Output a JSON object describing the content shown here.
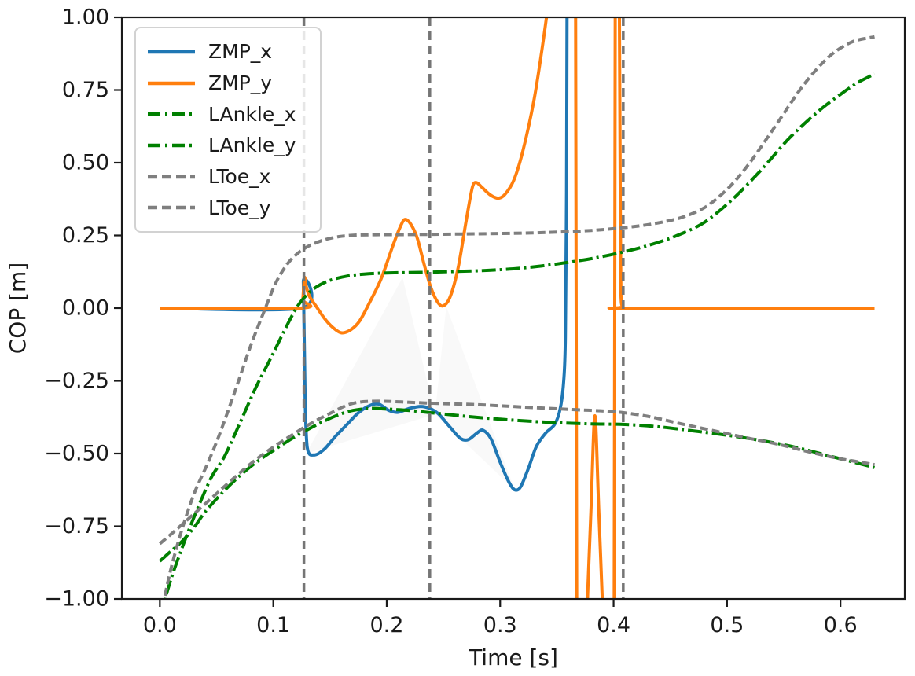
{
  "chart_data": {
    "type": "line",
    "title": "",
    "xlabel": "Time [s]",
    "ylabel": "COP [m]",
    "xlim": [
      -0.0335,
      0.6567
    ],
    "ylim": [
      -1.0,
      1.0
    ],
    "grid": false,
    "legend_position": "upper-left",
    "x_ticks": {
      "values": [
        0.0,
        0.1,
        0.2,
        0.3,
        0.4,
        0.5,
        0.6
      ],
      "labels": [
        "0.0",
        "0.1",
        "0.2",
        "0.3",
        "0.4",
        "0.5",
        "0.6"
      ]
    },
    "y_ticks": {
      "values": [
        1.0,
        0.75,
        0.5,
        0.25,
        0.0,
        -0.25,
        -0.5,
        -0.75,
        -1.0
      ],
      "labels": [
        "1.00",
        "0.75",
        "0.50",
        "0.25",
        "0.00",
        "−0.25",
        "−0.50",
        "−0.75",
        "−1.00"
      ]
    },
    "event_lines": {
      "color": "#757575",
      "style": "dashed",
      "times": [
        0.127,
        0.238,
        0.4085
      ]
    },
    "shaded_regions": [
      {
        "fill": "#c8c8c8",
        "opacity": 0.13,
        "points": [
          [
            0.129,
            -0.5
          ],
          [
            0.214,
            0.105
          ],
          [
            0.2425,
            -0.365
          ]
        ]
      },
      {
        "fill": "#c8c8c8",
        "opacity": 0.1,
        "points": [
          [
            0.2425,
            -0.365
          ],
          [
            0.2525,
            0.005
          ],
          [
            0.313,
            -0.625
          ]
        ]
      }
    ],
    "series": [
      {
        "name": "ZMP_x",
        "color": "#1f77b4",
        "style": "solid",
        "segments": [
          [
            [
              0.0,
              0.0
            ],
            [
              0.125,
              0.0
            ],
            [
              0.1265,
              0.09
            ],
            [
              0.128,
              -0.3
            ],
            [
              0.13,
              -0.48
            ],
            [
              0.136,
              -0.505
            ],
            [
              0.145,
              -0.485
            ],
            [
              0.155,
              -0.44
            ],
            [
              0.165,
              -0.4
            ],
            [
              0.175,
              -0.36
            ],
            [
              0.185,
              -0.335
            ],
            [
              0.193,
              -0.33
            ],
            [
              0.202,
              -0.352
            ],
            [
              0.21,
              -0.358
            ],
            [
              0.22,
              -0.345
            ],
            [
              0.23,
              -0.338
            ],
            [
              0.238,
              -0.345
            ],
            [
              0.246,
              -0.365
            ],
            [
              0.256,
              -0.41
            ],
            [
              0.265,
              -0.448
            ],
            [
              0.272,
              -0.452
            ],
            [
              0.28,
              -0.428
            ],
            [
              0.285,
              -0.42
            ],
            [
              0.292,
              -0.45
            ],
            [
              0.3,
              -0.53
            ],
            [
              0.308,
              -0.6
            ],
            [
              0.313,
              -0.625
            ],
            [
              0.318,
              -0.615
            ],
            [
              0.325,
              -0.55
            ],
            [
              0.332,
              -0.475
            ],
            [
              0.34,
              -0.43
            ],
            [
              0.348,
              -0.4
            ],
            [
              0.353,
              -0.345
            ],
            [
              0.356,
              -0.25
            ],
            [
              0.3575,
              -0.1
            ],
            [
              0.3585,
              0.4
            ],
            [
              0.359,
              1.1
            ],
            [
              0.3595,
              1.15
            ]
          ],
          [
            [
              0.412,
              0.0
            ],
            [
              0.63,
              0.0
            ]
          ]
        ]
      },
      {
        "name": "ZMP_y",
        "color": "#ff7f0e",
        "style": "solid",
        "segments": [
          [
            [
              0.0,
              0.0
            ],
            [
              0.124,
              0.0
            ],
            [
              0.126,
              0.03
            ],
            [
              0.1275,
              0.105
            ],
            [
              0.129,
              0.075
            ],
            [
              0.132,
              0.04
            ],
            [
              0.138,
              0.005
            ],
            [
              0.145,
              -0.035
            ],
            [
              0.152,
              -0.065
            ],
            [
              0.16,
              -0.085
            ],
            [
              0.168,
              -0.075
            ],
            [
              0.176,
              -0.045
            ],
            [
              0.185,
              0.02
            ],
            [
              0.195,
              0.1
            ],
            [
              0.205,
              0.21
            ],
            [
              0.212,
              0.28
            ],
            [
              0.216,
              0.305
            ],
            [
              0.221,
              0.29
            ],
            [
              0.227,
              0.24
            ],
            [
              0.233,
              0.15
            ],
            [
              0.239,
              0.07
            ],
            [
              0.245,
              0.02
            ],
            [
              0.25,
              0.008
            ],
            [
              0.256,
              0.04
            ],
            [
              0.263,
              0.14
            ],
            [
              0.27,
              0.3
            ],
            [
              0.2755,
              0.415
            ],
            [
              0.279,
              0.432
            ],
            [
              0.284,
              0.415
            ],
            [
              0.291,
              0.39
            ],
            [
              0.298,
              0.378
            ],
            [
              0.304,
              0.39
            ],
            [
              0.312,
              0.44
            ],
            [
              0.32,
              0.54
            ],
            [
              0.33,
              0.72
            ],
            [
              0.338,
              0.92
            ],
            [
              0.344,
              1.1
            ],
            [
              0.3445,
              1.15
            ],
            [
              0.366,
              1.15
            ],
            [
              0.3665,
              1.1
            ],
            [
              0.3675,
              -1.1
            ],
            [
              0.368,
              -1.15
            ],
            [
              0.3755,
              -1.15
            ],
            [
              0.376,
              -1.1
            ],
            [
              0.38,
              -0.7
            ],
            [
              0.3835,
              -0.37
            ],
            [
              0.387,
              -0.7
            ],
            [
              0.391,
              -1.1
            ],
            [
              0.3915,
              -1.15
            ],
            [
              0.4,
              -1.15
            ],
            [
              0.4005,
              -1.1
            ],
            [
              0.4015,
              1.1
            ],
            [
              0.402,
              1.15
            ],
            [
              0.4045,
              1.15
            ],
            [
              0.405,
              1.1
            ],
            [
              0.406,
              0.3
            ],
            [
              0.4065,
              0.05
            ],
            [
              0.408,
              0.005
            ],
            [
              0.412,
              0.0
            ],
            [
              0.63,
              0.0
            ]
          ]
        ]
      },
      {
        "name": "LAnkle_x",
        "color": "#008000",
        "style": "dashdot",
        "segments": [
          [
            [
              0.0,
              -0.87
            ],
            [
              0.01,
              -0.835
            ],
            [
              0.02,
              -0.8
            ],
            [
              0.03,
              -0.755
            ],
            [
              0.04,
              -0.7
            ],
            [
              0.055,
              -0.635
            ],
            [
              0.07,
              -0.578
            ],
            [
              0.085,
              -0.53
            ],
            [
              0.1,
              -0.49
            ],
            [
              0.115,
              -0.452
            ],
            [
              0.13,
              -0.418
            ],
            [
              0.145,
              -0.388
            ],
            [
              0.158,
              -0.366
            ],
            [
              0.17,
              -0.352
            ],
            [
              0.185,
              -0.345
            ],
            [
              0.2,
              -0.347
            ],
            [
              0.22,
              -0.352
            ],
            [
              0.24,
              -0.36
            ],
            [
              0.27,
              -0.372
            ],
            [
              0.3,
              -0.382
            ],
            [
              0.34,
              -0.392
            ],
            [
              0.38,
              -0.398
            ],
            [
              0.41,
              -0.4
            ],
            [
              0.44,
              -0.408
            ],
            [
              0.47,
              -0.422
            ],
            [
              0.5,
              -0.437
            ],
            [
              0.53,
              -0.455
            ],
            [
              0.56,
              -0.478
            ],
            [
              0.59,
              -0.508
            ],
            [
              0.615,
              -0.533
            ],
            [
              0.63,
              -0.548
            ]
          ]
        ]
      },
      {
        "name": "LAnkle_y",
        "color": "#008000",
        "style": "dashdot",
        "segments": [
          [
            [
              0.002,
              -1.15
            ],
            [
              0.004,
              -1.02
            ],
            [
              0.01,
              -0.93
            ],
            [
              0.02,
              -0.82
            ],
            [
              0.03,
              -0.72
            ],
            [
              0.045,
              -0.585
            ],
            [
              0.057,
              -0.51
            ],
            [
              0.07,
              -0.4
            ],
            [
              0.085,
              -0.27
            ],
            [
              0.1,
              -0.155
            ],
            [
              0.112,
              -0.06
            ],
            [
              0.122,
              0.01
            ],
            [
              0.132,
              0.055
            ],
            [
              0.142,
              0.082
            ],
            [
              0.152,
              0.098
            ],
            [
              0.165,
              0.11
            ],
            [
              0.18,
              0.117
            ],
            [
              0.2,
              0.121
            ],
            [
              0.23,
              0.123
            ],
            [
              0.26,
              0.126
            ],
            [
              0.29,
              0.13
            ],
            [
              0.32,
              0.138
            ],
            [
              0.35,
              0.152
            ],
            [
              0.38,
              0.17
            ],
            [
              0.405,
              0.19
            ],
            [
              0.43,
              0.215
            ],
            [
              0.455,
              0.248
            ],
            [
              0.48,
              0.295
            ],
            [
              0.505,
              0.375
            ],
            [
              0.53,
              0.475
            ],
            [
              0.555,
              0.585
            ],
            [
              0.58,
              0.675
            ],
            [
              0.6,
              0.735
            ],
            [
              0.615,
              0.775
            ],
            [
              0.63,
              0.805
            ]
          ]
        ]
      },
      {
        "name": "LToe_x",
        "color": "#7f7f7f",
        "style": "dashed",
        "segments": [
          [
            [
              0.0,
              -0.81
            ],
            [
              0.012,
              -0.77
            ],
            [
              0.025,
              -0.725
            ],
            [
              0.04,
              -0.673
            ],
            [
              0.055,
              -0.62
            ],
            [
              0.07,
              -0.568
            ],
            [
              0.085,
              -0.52
            ],
            [
              0.1,
              -0.478
            ],
            [
              0.115,
              -0.44
            ],
            [
              0.128,
              -0.408
            ],
            [
              0.14,
              -0.382
            ],
            [
              0.152,
              -0.358
            ],
            [
              0.163,
              -0.337
            ],
            [
              0.172,
              -0.326
            ],
            [
              0.182,
              -0.321
            ],
            [
              0.195,
              -0.32
            ],
            [
              0.21,
              -0.322
            ],
            [
              0.24,
              -0.327
            ],
            [
              0.28,
              -0.332
            ],
            [
              0.32,
              -0.34
            ],
            [
              0.36,
              -0.348
            ],
            [
              0.4,
              -0.356
            ],
            [
              0.43,
              -0.372
            ],
            [
              0.46,
              -0.398
            ],
            [
              0.49,
              -0.423
            ],
            [
              0.52,
              -0.448
            ],
            [
              0.545,
              -0.468
            ],
            [
              0.575,
              -0.497
            ],
            [
              0.6,
              -0.518
            ],
            [
              0.615,
              -0.528
            ],
            [
              0.63,
              -0.538
            ]
          ]
        ]
      },
      {
        "name": "LToe_y",
        "color": "#7f7f7f",
        "style": "dashed",
        "segments": [
          [
            [
              0.001,
              -1.15
            ],
            [
              0.002,
              -1.05
            ],
            [
              0.008,
              -0.925
            ],
            [
              0.018,
              -0.78
            ],
            [
              0.03,
              -0.64
            ],
            [
              0.042,
              -0.535
            ],
            [
              0.052,
              -0.44
            ],
            [
              0.065,
              -0.3
            ],
            [
              0.08,
              -0.13
            ],
            [
              0.092,
              -0.01
            ],
            [
              0.102,
              0.085
            ],
            [
              0.112,
              0.15
            ],
            [
              0.122,
              0.19
            ],
            [
              0.132,
              0.215
            ],
            [
              0.145,
              0.235
            ],
            [
              0.158,
              0.246
            ],
            [
              0.172,
              0.251
            ],
            [
              0.19,
              0.2525
            ],
            [
              0.22,
              0.253
            ],
            [
              0.26,
              0.2545
            ],
            [
              0.3,
              0.2565
            ],
            [
              0.34,
              0.26
            ],
            [
              0.38,
              0.267
            ],
            [
              0.41,
              0.277
            ],
            [
              0.435,
              0.29
            ],
            [
              0.46,
              0.312
            ],
            [
              0.482,
              0.35
            ],
            [
              0.503,
              0.42
            ],
            [
              0.522,
              0.51
            ],
            [
              0.545,
              0.64
            ],
            [
              0.568,
              0.77
            ],
            [
              0.59,
              0.865
            ],
            [
              0.61,
              0.915
            ],
            [
              0.63,
              0.933
            ]
          ]
        ]
      }
    ],
    "legend_entries": [
      "ZMP_x",
      "ZMP_y",
      "LAnkle_x",
      "LAnkle_y",
      "LToe_x",
      "LToe_y"
    ]
  }
}
